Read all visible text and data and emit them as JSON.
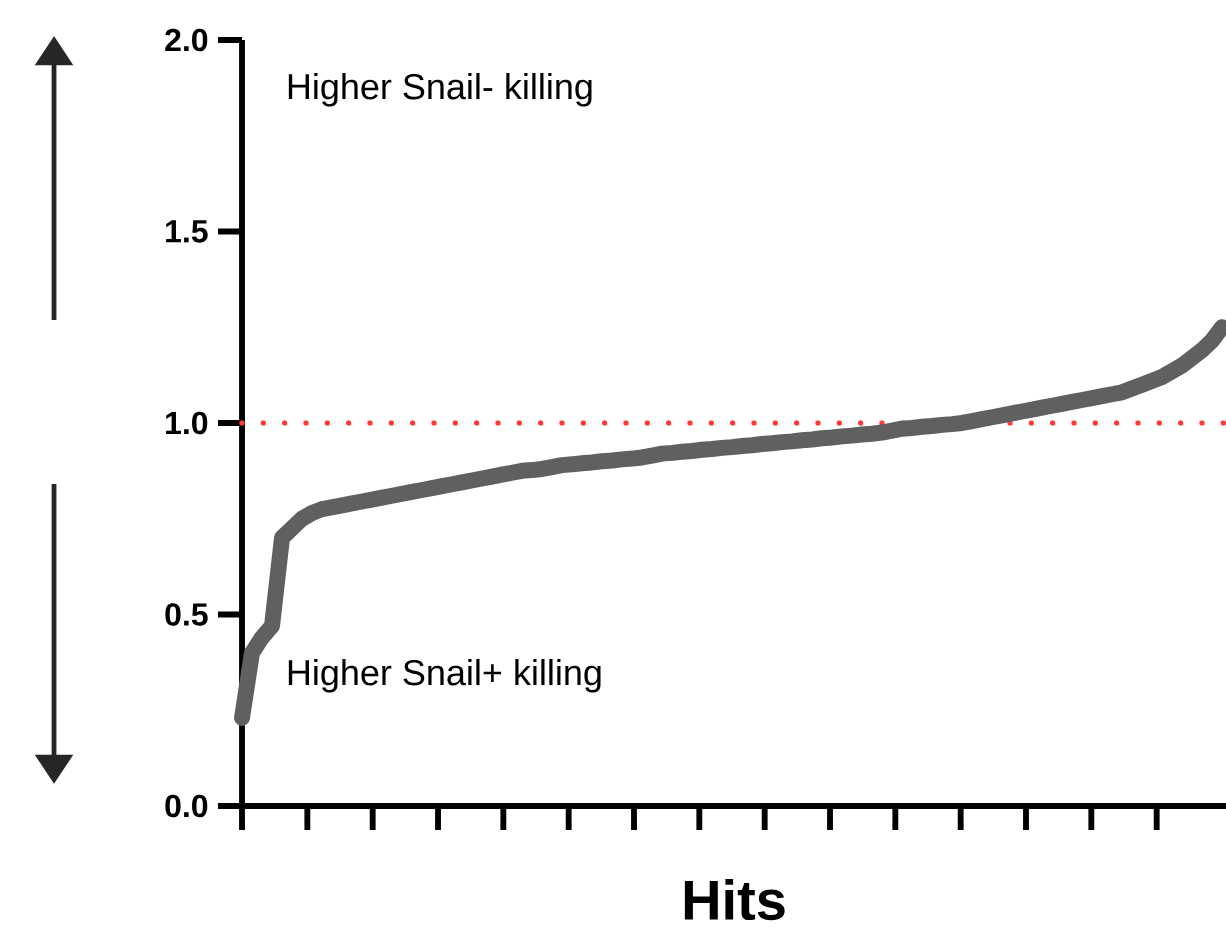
{
  "chart_data": {
    "type": "line",
    "xlabel": "Hits",
    "categories": [
      null,
      null,
      null,
      null,
      null,
      null,
      null,
      null,
      null,
      null,
      null,
      null,
      null,
      null,
      null,
      null,
      null,
      null,
      null,
      null,
      null,
      null,
      null,
      null,
      null,
      null,
      null,
      null,
      null,
      null,
      null,
      null,
      null,
      null,
      null,
      null,
      null,
      null,
      null,
      null,
      null,
      null,
      null,
      null,
      null,
      null,
      null,
      null,
      null,
      null,
      null,
      null,
      null,
      null,
      null,
      null,
      null,
      null,
      null,
      null,
      null,
      null,
      null,
      null,
      null,
      null,
      null,
      null,
      null,
      null,
      null,
      null,
      null,
      null,
      null,
      null,
      null,
      null,
      null,
      null,
      null,
      null,
      null,
      null,
      null,
      null,
      null,
      null,
      null,
      null,
      null,
      null,
      null,
      null,
      null,
      null,
      null,
      null,
      null
    ],
    "series": [
      {
        "color": "#606060",
        "line_style": "solid",
        "values": [
          0.23,
          0.4,
          0.44,
          0.47,
          0.7,
          0.725,
          0.75,
          0.765,
          0.775,
          0.78,
          0.785,
          0.79,
          0.795,
          0.8,
          0.805,
          0.81,
          0.815,
          0.82,
          0.825,
          0.83,
          0.835,
          0.84,
          0.845,
          0.85,
          0.855,
          0.86,
          0.865,
          0.87,
          0.875,
          0.877,
          0.88,
          0.885,
          0.89,
          0.892,
          0.895,
          0.897,
          0.9,
          0.902,
          0.905,
          0.907,
          0.91,
          0.915,
          0.92,
          0.922,
          0.925,
          0.927,
          0.93,
          0.932,
          0.935,
          0.937,
          0.94,
          0.942,
          0.945,
          0.947,
          0.95,
          0.952,
          0.955,
          0.957,
          0.96,
          0.962,
          0.965,
          0.967,
          0.97,
          0.972,
          0.975,
          0.98,
          0.985,
          0.987,
          0.99,
          0.992,
          0.995,
          0.997,
          1.0,
          1.005,
          1.01,
          1.015,
          1.02,
          1.025,
          1.03,
          1.035,
          1.04,
          1.045,
          1.05,
          1.055,
          1.06,
          1.065,
          1.07,
          1.075,
          1.08,
          1.09,
          1.1,
          1.11,
          1.12,
          1.135,
          1.15,
          1.17,
          1.19,
          1.215,
          1.25
        ]
      }
    ],
    "ylim": [
      0,
      2
    ],
    "yticks": [
      {
        "value": 0,
        "label": "0.0"
      },
      {
        "value": 0.5,
        "label": "0.5"
      },
      {
        "value": 1,
        "label": "1.0"
      },
      {
        "value": 1.5,
        "label": "1.5"
      },
      {
        "value": 2,
        "label": "2.0"
      }
    ],
    "tick_labels": "y",
    "grid": false,
    "ref_lines": [
      {
        "axis": "y",
        "value": 1,
        "color": "#ff3b3b",
        "line_style": "dotted"
      }
    ],
    "annotations": [
      "Higher Snail- killing",
      "Higher Snail+ killing"
    ]
  }
}
